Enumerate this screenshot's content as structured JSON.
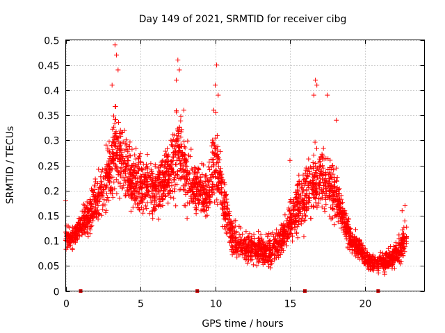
{
  "chart_data": {
    "type": "scatter",
    "title": "Day 149 of 2021, SRMTID for receiver cibg",
    "xlabel": "GPS time / hours",
    "ylabel": "SRMTID / TECUs",
    "xlim": [
      0,
      24
    ],
    "ylim": [
      0,
      0.5
    ],
    "x_ticks": [
      0,
      5,
      10,
      15,
      20
    ],
    "x_tick_labels": [
      "0",
      "5",
      "10",
      "15",
      "20"
    ],
    "y_ticks": [
      0,
      0.05,
      0.1,
      0.15,
      0.2,
      0.25,
      0.3,
      0.35,
      0.4,
      0.45,
      0.5
    ],
    "y_tick_labels": [
      "0",
      "0.05",
      "0.1",
      "0.15",
      "0.2",
      "0.25",
      "0.3",
      "0.35",
      "0.4",
      "0.45",
      "0.5"
    ],
    "grid": true,
    "marker": "+",
    "color": "#ff0000",
    "zero_markers_x": [
      1.0,
      8.8,
      16.0,
      20.9
    ],
    "envelope": {
      "x": [
        0.0,
        0.3,
        0.6,
        0.9,
        1.2,
        1.5,
        2.0,
        2.5,
        3.0,
        3.3,
        3.6,
        4.0,
        4.5,
        5.0,
        5.5,
        6.0,
        6.5,
        7.0,
        7.5,
        8.0,
        8.5,
        9.0,
        9.5,
        10.0,
        10.5,
        11.0,
        11.5,
        12.0,
        12.5,
        13.0,
        13.5,
        14.0,
        14.5,
        15.0,
        15.5,
        16.0,
        16.5,
        17.0,
        17.5,
        18.0,
        18.5,
        19.0,
        19.5,
        20.0,
        20.5,
        21.0,
        21.5,
        22.0,
        22.5,
        22.8
      ],
      "lower": [
        0.07,
        0.08,
        0.08,
        0.09,
        0.09,
        0.1,
        0.11,
        0.13,
        0.14,
        0.15,
        0.16,
        0.16,
        0.13,
        0.13,
        0.14,
        0.12,
        0.14,
        0.15,
        0.17,
        0.14,
        0.13,
        0.12,
        0.12,
        0.13,
        0.12,
        0.07,
        0.05,
        0.05,
        0.04,
        0.04,
        0.04,
        0.04,
        0.06,
        0.08,
        0.1,
        0.1,
        0.11,
        0.14,
        0.13,
        0.12,
        0.1,
        0.07,
        0.06,
        0.04,
        0.03,
        0.03,
        0.03,
        0.04,
        0.05,
        0.06
      ],
      "upper": [
        0.15,
        0.13,
        0.14,
        0.16,
        0.18,
        0.2,
        0.25,
        0.28,
        0.33,
        0.42,
        0.38,
        0.33,
        0.31,
        0.3,
        0.29,
        0.28,
        0.3,
        0.33,
        0.4,
        0.33,
        0.28,
        0.28,
        0.26,
        0.4,
        0.26,
        0.17,
        0.14,
        0.13,
        0.13,
        0.12,
        0.12,
        0.13,
        0.15,
        0.19,
        0.24,
        0.28,
        0.3,
        0.32,
        0.3,
        0.27,
        0.2,
        0.14,
        0.12,
        0.1,
        0.08,
        0.08,
        0.09,
        0.1,
        0.14,
        0.16
      ]
    },
    "outliers": [
      [
        3.3,
        0.49
      ],
      [
        3.4,
        0.47
      ],
      [
        3.1,
        0.41
      ],
      [
        3.5,
        0.44
      ],
      [
        7.5,
        0.46
      ],
      [
        7.6,
        0.44
      ],
      [
        7.4,
        0.42
      ],
      [
        7.9,
        0.36
      ],
      [
        10.1,
        0.45
      ],
      [
        10.0,
        0.41
      ],
      [
        10.2,
        0.39
      ],
      [
        9.9,
        0.36
      ],
      [
        16.7,
        0.42
      ],
      [
        16.8,
        0.41
      ],
      [
        16.6,
        0.39
      ],
      [
        17.5,
        0.39
      ],
      [
        18.1,
        0.34
      ],
      [
        22.5,
        0.16
      ],
      [
        22.7,
        0.17
      ],
      [
        15.0,
        0.26
      ],
      [
        0.0,
        0.18
      ]
    ],
    "n_points": 3200
  }
}
